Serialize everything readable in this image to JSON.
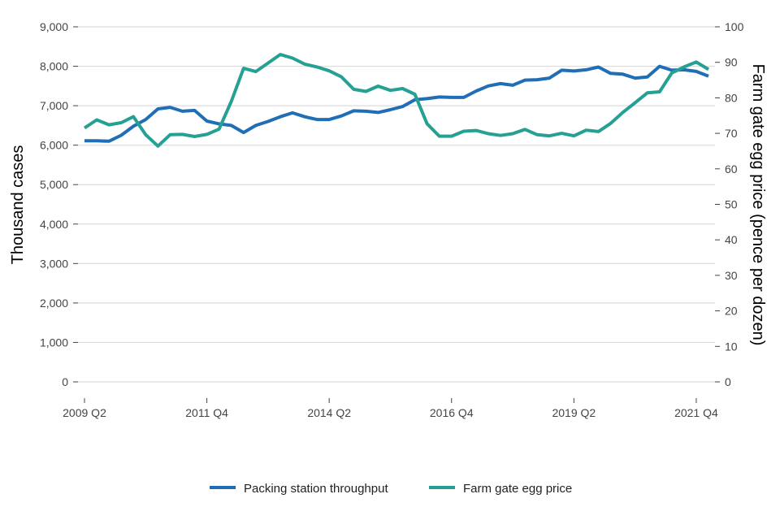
{
  "chart_data": {
    "type": "line",
    "title": "",
    "x_tick_labels": [
      "2009 Q2",
      "2011 Q4",
      "2014 Q2",
      "2016 Q4",
      "2019 Q2",
      "2021 Q4"
    ],
    "x_tick_indices": [
      0,
      10,
      20,
      30,
      40,
      50
    ],
    "ylabel_left": "Thousand cases",
    "ylabel_right": "Farm gate egg price (pence per dozen)",
    "y_left_range": [
      0,
      9000
    ],
    "y_left_ticks": [
      0,
      1000,
      2000,
      3000,
      4000,
      5000,
      6000,
      7000,
      8000,
      9000
    ],
    "y_left_tick_labels": [
      "0",
      "1,000",
      "2,000",
      "3,000",
      "4,000",
      "5,000",
      "6,000",
      "7,000",
      "8,000",
      "9,000"
    ],
    "y_right_range": [
      0,
      100
    ],
    "y_right_ticks": [
      0,
      10,
      20,
      30,
      40,
      50,
      60,
      70,
      80,
      90,
      100
    ],
    "y_right_tick_labels": [
      "0",
      "10",
      "20",
      "30",
      "40",
      "50",
      "60",
      "70",
      "80",
      "90",
      "100"
    ],
    "grid": true,
    "legend_position": "bottom",
    "series": [
      {
        "name": "Packing station throughput",
        "axis": "left",
        "color": "#1f6eb6",
        "values": [
          6110,
          6110,
          6100,
          6250,
          6480,
          6650,
          6920,
          6960,
          6860,
          6880,
          6610,
          6540,
          6500,
          6320,
          6500,
          6600,
          6720,
          6820,
          6720,
          6650,
          6650,
          6740,
          6870,
          6860,
          6830,
          6900,
          6980,
          7150,
          7180,
          7220,
          7210,
          7210,
          7370,
          7500,
          7560,
          7520,
          7650,
          7660,
          7700,
          7900,
          7880,
          7910,
          7980,
          7820,
          7800,
          7700,
          7730,
          8000,
          7900,
          7910,
          7870,
          7750
        ]
      },
      {
        "name": "Farm gate egg price",
        "axis": "right",
        "color": "#25a093",
        "values": [
          71.5,
          73.8,
          72.4,
          73.0,
          74.7,
          69.6,
          66.4,
          69.6,
          69.7,
          69.1,
          69.7,
          71.2,
          79.0,
          88.3,
          87.4,
          89.8,
          92.2,
          91.2,
          89.5,
          88.7,
          87.6,
          85.9,
          82.4,
          81.8,
          83.3,
          82.1,
          82.6,
          81.0,
          72.7,
          69.2,
          69.2,
          70.6,
          70.8,
          69.9,
          69.4,
          69.9,
          71.1,
          69.6,
          69.3,
          70.0,
          69.3,
          70.9,
          70.5,
          72.8,
          75.9,
          78.6,
          81.4,
          81.7,
          87.0,
          88.7,
          90.1,
          88.0
        ]
      }
    ]
  }
}
